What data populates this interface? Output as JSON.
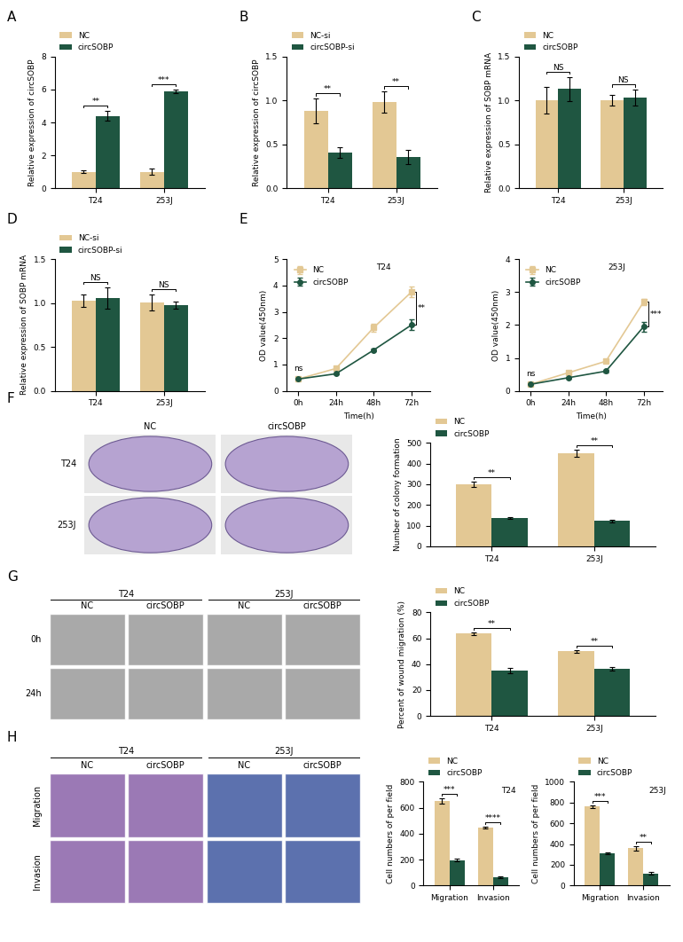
{
  "chart_data": [
    {
      "panel": "A",
      "type": "bar",
      "categories": [
        "T24",
        "253J"
      ],
      "ylabel": "Relative expression of circSOBP",
      "series": [
        {
          "name": "NC",
          "color": "#e3c894",
          "values": [
            1.0,
            1.0
          ],
          "errors": [
            0.08,
            0.18
          ]
        },
        {
          "name": "circSOBP",
          "color": "#1f5641",
          "values": [
            4.4,
            5.9
          ],
          "errors": [
            0.3,
            0.12
          ]
        }
      ],
      "ylim": [
        0,
        8
      ],
      "yticks": [
        0,
        2,
        4,
        6,
        8
      ],
      "annotations": [
        "**",
        "***"
      ],
      "legend": "top"
    },
    {
      "panel": "B",
      "type": "bar",
      "categories": [
        "T24",
        "253J"
      ],
      "ylabel": "Relative expression of circSOBP",
      "series": [
        {
          "name": "NC-si",
          "color": "#e3c894",
          "values": [
            0.88,
            0.98
          ],
          "errors": [
            0.14,
            0.12
          ]
        },
        {
          "name": "circSOBP-si",
          "color": "#1f5641",
          "values": [
            0.41,
            0.36
          ],
          "errors": [
            0.06,
            0.08
          ]
        }
      ],
      "ylim": [
        0,
        1.5
      ],
      "yticks": [
        {
          "value": 0,
          "label": "0.0"
        },
        0.5,
        {
          "value": 1,
          "label": "1.0"
        },
        1.5
      ],
      "annotations": [
        "**",
        "**"
      ],
      "legend": "top"
    },
    {
      "panel": "C",
      "type": "bar",
      "categories": [
        "T24",
        "253J"
      ],
      "ylabel": "Relative expression of SOBP mRNA",
      "series": [
        {
          "name": "NC",
          "color": "#e3c894",
          "values": [
            1.0,
            1.0
          ],
          "errors": [
            0.15,
            0.06
          ]
        },
        {
          "name": "circSOBP",
          "color": "#1f5641",
          "values": [
            1.13,
            1.03
          ],
          "errors": [
            0.14,
            0.09
          ]
        }
      ],
      "ylim": [
        0,
        1.5
      ],
      "yticks": [
        {
          "value": 0,
          "label": "0.0"
        },
        0.5,
        {
          "value": 1,
          "label": "1.0"
        },
        1.5
      ],
      "annotations": [
        "NS",
        "NS"
      ],
      "legend": "top"
    },
    {
      "panel": "D",
      "type": "bar",
      "categories": [
        "T24",
        "253J"
      ],
      "ylabel": "Relative expression of SOBP mRNA",
      "series": [
        {
          "name": "NC-si",
          "color": "#e3c894",
          "values": [
            1.03,
            1.01
          ],
          "errors": [
            0.07,
            0.09
          ]
        },
        {
          "name": "circSOBP-si",
          "color": "#1f5641",
          "values": [
            1.06,
            0.98
          ],
          "errors": [
            0.12,
            0.04
          ]
        }
      ],
      "ylim": [
        0,
        1.5
      ],
      "yticks": [
        {
          "value": 0,
          "label": "0.0"
        },
        0.5,
        {
          "value": 1,
          "label": "1.0"
        },
        1.5
      ],
      "annotations": [
        "NS",
        "NS"
      ],
      "legend": "top"
    },
    {
      "panel": "E",
      "type": "line",
      "title": "T24",
      "categories": [
        "0h",
        "24h",
        "48h",
        "72h"
      ],
      "xlabel": "Time(h)",
      "ylabel": "OD value(450nm)",
      "series": [
        {
          "name": "NC",
          "color": "#e3c894",
          "marker": "square",
          "values": [
            0.45,
            0.85,
            2.4,
            3.75
          ],
          "errors": [
            0.02,
            0.04,
            0.15,
            0.2
          ]
        },
        {
          "name": "circSOBP",
          "color": "#1f5641",
          "marker": "circle",
          "values": [
            0.45,
            0.65,
            1.55,
            2.5
          ],
          "errors": [
            0.02,
            0.03,
            0.05,
            0.2
          ]
        }
      ],
      "ylim": [
        0,
        5
      ],
      "yticks": [
        0,
        1,
        2,
        3,
        4,
        5
      ],
      "annotations": [
        "ns",
        null,
        null,
        "**"
      ],
      "legend": "upper left"
    },
    {
      "type": "line",
      "title": "253J",
      "categories": [
        "0h",
        "24h",
        "48h",
        "72h"
      ],
      "xlabel": "Time(h)",
      "ylabel": "OD value(450nm)",
      "series": [
        {
          "name": "NC",
          "color": "#e3c894",
          "marker": "square",
          "values": [
            0.2,
            0.55,
            0.9,
            2.7
          ],
          "errors": [
            0.02,
            0.03,
            0.05,
            0.1
          ]
        },
        {
          "name": "circSOBP",
          "color": "#1f5641",
          "marker": "circle",
          "values": [
            0.2,
            0.4,
            0.6,
            1.95
          ],
          "errors": [
            0.02,
            0.03,
            0.04,
            0.15
          ]
        }
      ],
      "ylim": [
        0,
        4
      ],
      "yticks": [
        0,
        1,
        2,
        3,
        4
      ],
      "annotations": [
        "ns",
        null,
        null,
        "***"
      ],
      "legend": "upper left"
    },
    {
      "type": "bar",
      "categories": [
        "T24",
        "253J"
      ],
      "ylabel": "Number of colony formation",
      "series": [
        {
          "name": "NC",
          "color": "#e3c894",
          "values": [
            300,
            450
          ],
          "errors": [
            12,
            18
          ]
        },
        {
          "name": "circSOBP",
          "color": "#1f5641",
          "values": [
            137,
            122
          ],
          "errors": [
            6,
            6
          ]
        }
      ],
      "ylim": [
        0,
        500
      ],
      "yticks": [
        0,
        100,
        200,
        300,
        400,
        500
      ],
      "annotations": [
        "**",
        "**"
      ],
      "legend": "top"
    },
    {
      "type": "bar",
      "categories": [
        "T24",
        "253J"
      ],
      "ylabel": "Percent of wound migration (%)",
      "series": [
        {
          "name": "NC",
          "color": "#e3c894",
          "values": [
            63.5,
            50
          ],
          "errors": [
            1.2,
            1.0
          ]
        },
        {
          "name": "circSOBP",
          "color": "#1f5641",
          "values": [
            35,
            36.5
          ],
          "errors": [
            2.0,
            1.5
          ]
        }
      ],
      "ylim": [
        0,
        80
      ],
      "yticks": [
        0,
        20,
        40,
        60,
        80
      ],
      "annotations": [
        "**",
        "**"
      ],
      "legend": "top"
    },
    {
      "type": "bar",
      "title": "T24",
      "categories": [
        "Migration",
        "Invasion"
      ],
      "ylabel": "Cell numbers of per field",
      "series": [
        {
          "name": "NC",
          "color": "#e3c894",
          "values": [
            655,
            445
          ],
          "errors": [
            20,
            8
          ]
        },
        {
          "name": "circSOBP",
          "color": "#1f5641",
          "values": [
            195,
            65
          ],
          "errors": [
            10,
            5
          ]
        }
      ],
      "ylim": [
        0,
        800
      ],
      "yticks": [
        0,
        200,
        400,
        600,
        800
      ],
      "annotations": [
        "***",
        "****"
      ],
      "legend": "top"
    },
    {
      "type": "bar",
      "title": "253J",
      "categories": [
        "Migration",
        "Invasion"
      ],
      "ylabel": "Cell numbers of per field",
      "series": [
        {
          "name": "NC",
          "color": "#e3c894",
          "values": [
            760,
            360
          ],
          "errors": [
            15,
            20
          ]
        },
        {
          "name": "circSOBP",
          "color": "#1f5641",
          "values": [
            310,
            115
          ],
          "errors": [
            10,
            12
          ]
        }
      ],
      "ylim": [
        0,
        1000
      ],
      "yticks": [
        0,
        200,
        400,
        600,
        800,
        1000
      ],
      "annotations": [
        "***",
        "**"
      ],
      "legend": "top"
    }
  ],
  "image_panels": [
    {
      "panel": "F",
      "column_labels": [
        "NC",
        "circSOBP"
      ],
      "row_labels": [
        "T24",
        "253J"
      ]
    },
    {
      "panel": "G",
      "group_labels": [
        "T24",
        "253J"
      ],
      "column_labels": [
        "NC",
        "circSOBP"
      ],
      "row_labels": [
        "0h",
        "24h"
      ]
    },
    {
      "panel": "H",
      "group_labels": [
        "T24",
        "253J"
      ],
      "column_labels": [
        "NC",
        "circSOBP"
      ],
      "row_labels": [
        "Migration",
        "Invasion"
      ]
    }
  ]
}
